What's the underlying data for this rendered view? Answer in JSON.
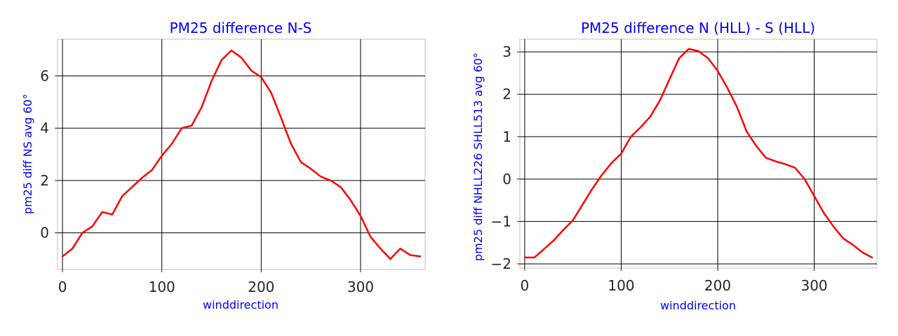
{
  "chart_data": [
    {
      "type": "line",
      "title": "PM25 difference N-S",
      "xlabel": "winddirection",
      "ylabel": "pm25 diff NS avg 60°",
      "xlim": [
        -5,
        365
      ],
      "ylim": [
        -1.4,
        7.4
      ],
      "xticks": [
        0,
        100,
        200,
        300
      ],
      "yticks": [
        0,
        2,
        4,
        6
      ],
      "grid": true,
      "line_color": "#ff0000",
      "series": [
        {
          "x": [
            0,
            10,
            20,
            30,
            40,
            50,
            60,
            70,
            80,
            90,
            100,
            110,
            120,
            130,
            140,
            150,
            160,
            170,
            180,
            190,
            200,
            210,
            220,
            230,
            240,
            250,
            260,
            270,
            280,
            290,
            300,
            310,
            320,
            330,
            340,
            350,
            360
          ],
          "values": [
            -0.9,
            -0.6,
            0.0,
            0.25,
            0.8,
            0.7,
            1.4,
            1.75,
            2.1,
            2.4,
            2.95,
            3.4,
            4.0,
            4.1,
            4.8,
            5.8,
            6.6,
            6.97,
            6.7,
            6.2,
            5.95,
            5.35,
            4.4,
            3.4,
            2.7,
            2.45,
            2.15,
            2.0,
            1.75,
            1.25,
            0.65,
            -0.15,
            -0.6,
            -1.0,
            -0.6,
            -0.85,
            -0.9
          ]
        }
      ]
    },
    {
      "type": "line",
      "title": "PM25 difference N (HLL) - S (HLL)",
      "xlabel": "winddirection",
      "ylabel": "pm25 diff NHLL226 SHLL513 avg 60°",
      "xlim": [
        -5,
        365
      ],
      "ylim": [
        -2.1,
        3.3
      ],
      "xticks": [
        0,
        100,
        200,
        300
      ],
      "yticks": [
        -2,
        -1,
        0,
        1,
        2,
        3
      ],
      "grid": true,
      "line_color": "#ff0000",
      "series": [
        {
          "x": [
            0,
            10,
            20,
            30,
            40,
            50,
            60,
            70,
            80,
            90,
            100,
            110,
            120,
            130,
            140,
            150,
            160,
            170,
            180,
            190,
            200,
            210,
            220,
            230,
            240,
            250,
            260,
            270,
            280,
            290,
            300,
            310,
            320,
            330,
            340,
            350,
            360
          ],
          "values": [
            -1.85,
            -1.85,
            -1.65,
            -1.45,
            -1.2,
            -0.97,
            -0.6,
            -0.23,
            0.1,
            0.38,
            0.6,
            1.0,
            1.22,
            1.47,
            1.85,
            2.35,
            2.85,
            3.07,
            3.02,
            2.85,
            2.55,
            2.15,
            1.7,
            1.12,
            0.78,
            0.5,
            0.42,
            0.35,
            0.27,
            0.0,
            -0.4,
            -0.8,
            -1.12,
            -1.4,
            -1.55,
            -1.73,
            -1.85
          ]
        }
      ]
    }
  ]
}
